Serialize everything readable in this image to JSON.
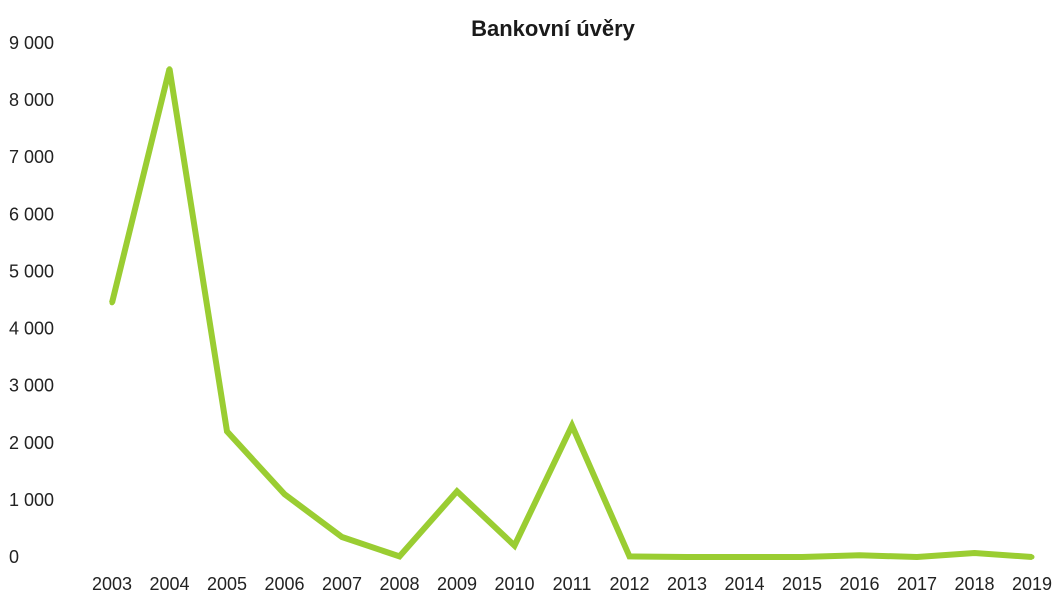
{
  "chart_data": {
    "type": "line",
    "title": "Bankovní úvěry",
    "xlabel": "",
    "ylabel": "",
    "categories": [
      "2003",
      "2004",
      "2005",
      "2006",
      "2007",
      "2008",
      "2009",
      "2010",
      "2011",
      "2012",
      "2013",
      "2014",
      "2015",
      "2016",
      "2017",
      "2018",
      "2019"
    ],
    "series": [
      {
        "values": [
          4450,
          8550,
          2200,
          1100,
          350,
          10,
          1150,
          200,
          2300,
          10,
          0,
          0,
          0,
          30,
          0,
          70,
          0
        ]
      }
    ],
    "y_ticks": [
      "0",
      "1 000",
      "2 000",
      "3 000",
      "4 000",
      "5 000",
      "6 000",
      "7 000",
      "8 000",
      "9 000"
    ],
    "ylim": [
      0,
      9000
    ],
    "grid": false,
    "legend": "none",
    "colors": {
      "line": "#9ACD32"
    }
  }
}
